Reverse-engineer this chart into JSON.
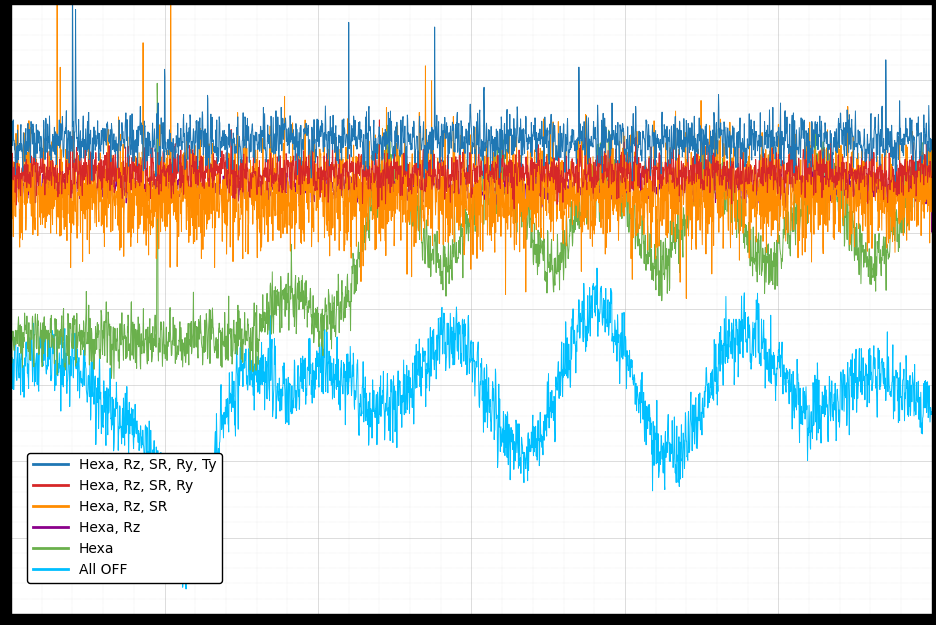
{
  "title": "",
  "xlabel": "",
  "ylabel": "",
  "background_color": "#000000",
  "plot_background": "#ffffff",
  "grid_color": "#b0b0b0",
  "legend_entries": [
    "Hexa, Rz, SR, Ry, Ty",
    "Hexa, Rz, SR, Ry",
    "Hexa, Rz, SR",
    "Hexa, Rz",
    "Hexa",
    "All OFF"
  ],
  "line_colors": [
    "#1f77b4",
    "#d62728",
    "#ff8c00",
    "#8b008b",
    "#6ab04c",
    "#00bfff"
  ],
  "line_widths": [
    0.7,
    0.7,
    0.7,
    0.7,
    0.7,
    0.7
  ],
  "n_points": 3000,
  "seed": 42,
  "xlim": [
    0,
    3000
  ]
}
